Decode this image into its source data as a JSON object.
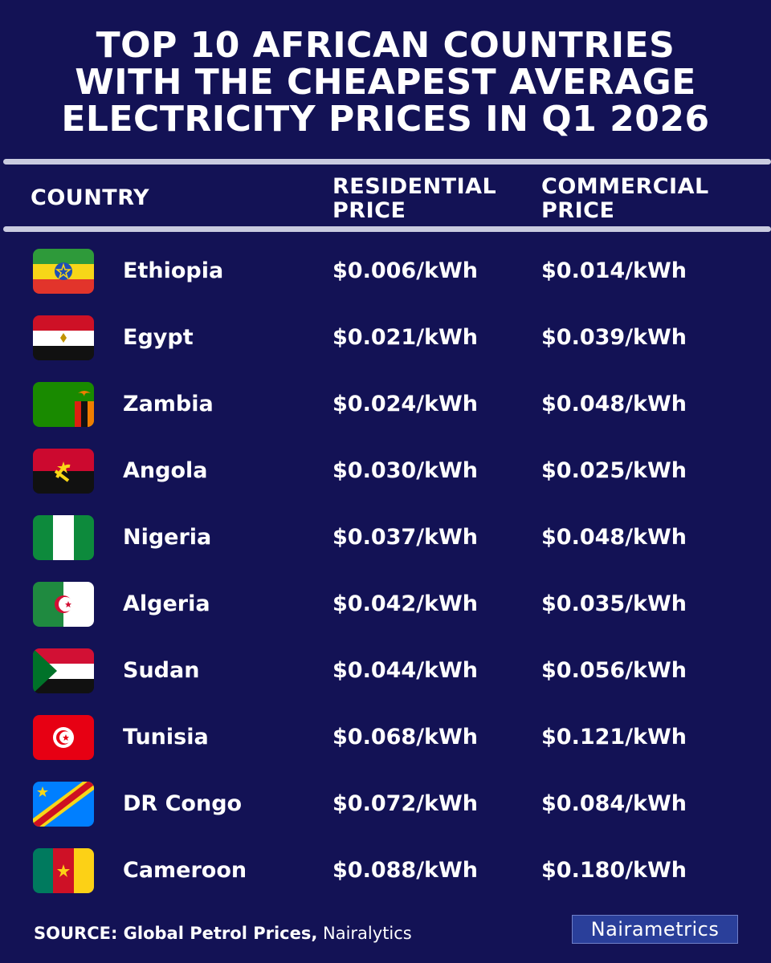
{
  "title_lines": [
    "TOP 10 AFRICAN COUNTRIES",
    "WITH THE CHEAPEST AVERAGE",
    "ELECTRICITY PRICES IN Q1 2026"
  ],
  "columns": {
    "country": "COUNTRY",
    "residential": [
      "RESIDENTIAL",
      "PRICE"
    ],
    "commercial": [
      "COMMERCIAL",
      "PRICE"
    ]
  },
  "rows": [
    {
      "country": "Ethiopia",
      "flag": "ethiopia-flag-icon",
      "residential": "$0.006/kWh",
      "commercial": "$0.014/kWh"
    },
    {
      "country": "Egypt",
      "flag": "egypt-flag-icon",
      "residential": "$0.021/kWh",
      "commercial": "$0.039/kWh"
    },
    {
      "country": "Zambia",
      "flag": "zambia-flag-icon",
      "residential": "$0.024/kWh",
      "commercial": "$0.048/kWh"
    },
    {
      "country": "Angola",
      "flag": "angola-flag-icon",
      "residential": "$0.030/kWh",
      "commercial": "$0.025/kWh"
    },
    {
      "country": "Nigeria",
      "flag": "nigeria-flag-icon",
      "residential": "$0.037/kWh",
      "commercial": "$0.048/kWh"
    },
    {
      "country": "Algeria",
      "flag": "algeria-flag-icon",
      "residential": "$0.042/kWh",
      "commercial": "$0.035/kWh"
    },
    {
      "country": "Sudan",
      "flag": "sudan-flag-icon",
      "residential": "$0.044/kWh",
      "commercial": "$0.056/kWh"
    },
    {
      "country": "Tunisia",
      "flag": "tunisia-flag-icon",
      "residential": "$0.068/kWh",
      "commercial": "$0.121/kWh"
    },
    {
      "country": "DR Congo",
      "flag": "dr-congo-flag-icon",
      "residential": "$0.072/kWh",
      "commercial": "$0.084/kWh"
    },
    {
      "country": "Cameroon",
      "flag": "cameroon-flag-icon",
      "residential": "$0.088/kWh",
      "commercial": "$0.180/kWh"
    }
  ],
  "footer": {
    "source_label": "SOURCE: Global Petrol Prices,",
    "source_extra": "Nairalytics"
  },
  "logo": "Nairametrics",
  "colors": {
    "background": "#131255",
    "rule": "#c9cbe0",
    "logo_bg": "#2a3f9a"
  }
}
